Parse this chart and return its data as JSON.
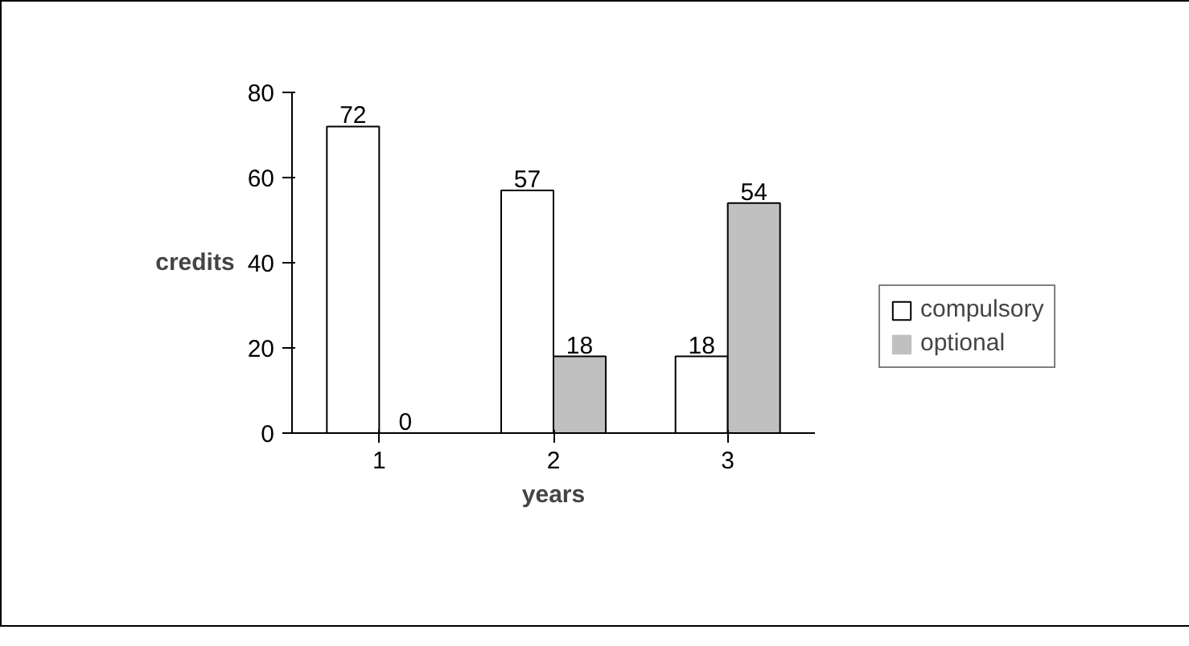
{
  "chart_data": {
    "type": "bar",
    "xlabel": "years",
    "ylabel": "credits",
    "categories": [
      "1",
      "2",
      "3"
    ],
    "series": [
      {
        "name": "compulsory",
        "color": "#ffffff",
        "values": [
          72,
          57,
          18
        ]
      },
      {
        "name": "optional",
        "color": "#c0c0c0",
        "values": [
          0,
          18,
          54
        ]
      }
    ],
    "ylim": [
      0,
      80
    ],
    "yticks": [
      0,
      20,
      40,
      60,
      80
    ],
    "data_labels": true,
    "legend": "right",
    "grid": false
  }
}
